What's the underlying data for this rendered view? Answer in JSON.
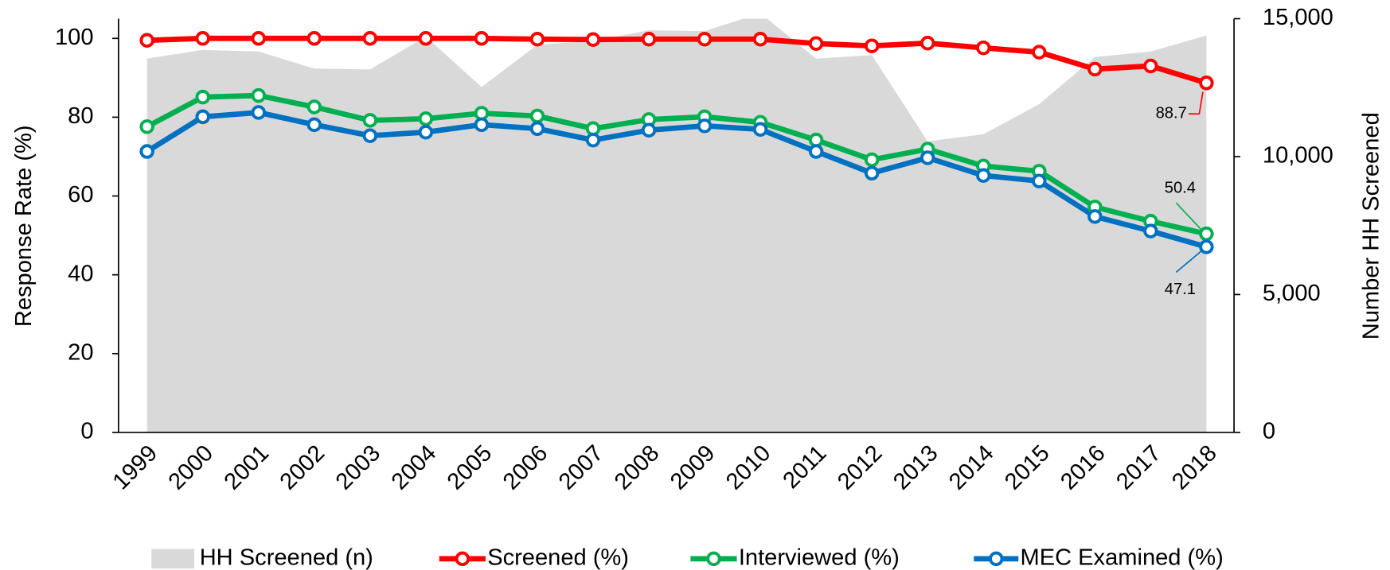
{
  "chart_data": {
    "type": "line",
    "categories": [
      "1999",
      "2000",
      "2001",
      "2002",
      "2003",
      "2004",
      "2005",
      "2006",
      "2007",
      "2008",
      "2009",
      "2010",
      "2011",
      "2012",
      "2013",
      "2014",
      "2015",
      "2016",
      "2017",
      "2018"
    ],
    "y_label": "Response Rate (%)",
    "y2_label": "Number HH Screened",
    "ylim": [
      0,
      105
    ],
    "yticks": [
      0,
      20,
      40,
      60,
      80,
      100
    ],
    "y2lim": [
      0,
      15000
    ],
    "y2ticks": [
      0,
      {
        "value": 5000,
        "label": "5,000"
      },
      {
        "value": 10000,
        "label": "10,000"
      },
      {
        "value": 15000,
        "label": "15,000"
      }
    ],
    "legend": "bottom",
    "series": [
      {
        "name": "HH Screened (n)",
        "kind": "area",
        "axis": "y2",
        "color": "#d9d9d9",
        "values": [
          13550,
          13870,
          13810,
          13190,
          13160,
          14350,
          12520,
          14060,
          14190,
          14580,
          14550,
          15200,
          13550,
          13680,
          10550,
          10810,
          11900,
          13610,
          13810,
          14390
        ]
      },
      {
        "name": "Screened (%)",
        "kind": "line",
        "color": "#ff0000",
        "values": [
          99.5,
          100,
          100,
          100,
          100,
          100,
          100,
          99.8,
          99.7,
          99.8,
          99.8,
          99.8,
          98.7,
          98.1,
          98.8,
          97.6,
          96.5,
          92.2,
          93.0,
          88.7
        ]
      },
      {
        "name": "Interviewed (%)",
        "kind": "line",
        "color": "#00b050",
        "values": [
          77.6,
          85.1,
          85.5,
          82.6,
          79.2,
          79.6,
          81.0,
          80.3,
          77.1,
          79.4,
          80.1,
          78.7,
          74.2,
          69.2,
          71.9,
          67.6,
          66.3,
          57.2,
          53.6,
          50.4
        ]
      },
      {
        "name": "MEC Examined (%)",
        "kind": "line",
        "color": "#0070c0",
        "values": [
          71.3,
          80.1,
          81.2,
          78.1,
          75.3,
          76.2,
          78.1,
          77.1,
          74.2,
          76.7,
          77.8,
          76.9,
          71.3,
          65.8,
          69.7,
          65.2,
          63.8,
          54.8,
          51.1,
          47.1
        ]
      }
    ]
  }
}
